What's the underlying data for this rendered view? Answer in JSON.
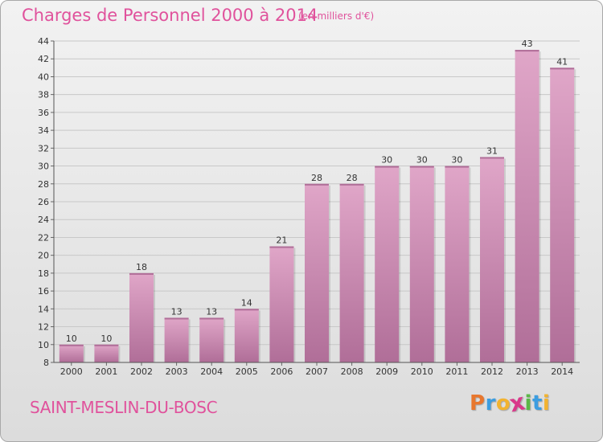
{
  "chart_data": {
    "type": "bar",
    "title": "Charges de Personnel 2000 à 2014",
    "subtitle": "(en milliers d'€)",
    "categories": [
      "2000",
      "2001",
      "2002",
      "2003",
      "2004",
      "2005",
      "2006",
      "2007",
      "2008",
      "2009",
      "2010",
      "2011",
      "2012",
      "2013",
      "2014"
    ],
    "values": [
      10,
      10,
      18,
      13,
      13,
      14,
      21,
      28,
      28,
      30,
      30,
      30,
      31,
      43,
      41
    ],
    "ylim": [
      8,
      44
    ],
    "yticks": [
      8,
      10,
      12,
      14,
      16,
      18,
      20,
      22,
      24,
      26,
      28,
      30,
      32,
      34,
      36,
      38,
      40,
      42,
      44
    ],
    "grid": true,
    "bar_color": "#e0a6c8",
    "bar_color_dark": "#b06e98",
    "text_color": "#e0529c"
  },
  "footer": {
    "commune": "SAINT-MESLIN-DU-BOSC",
    "logo_letters": [
      "P",
      "r",
      "o",
      "x",
      "i",
      "t",
      "i"
    ],
    "logo_colors": [
      "#e8772e",
      "#3c9de0",
      "#f2b330",
      "#d9398a",
      "#5bb847",
      "#3c9de0",
      "#f2b330"
    ]
  }
}
